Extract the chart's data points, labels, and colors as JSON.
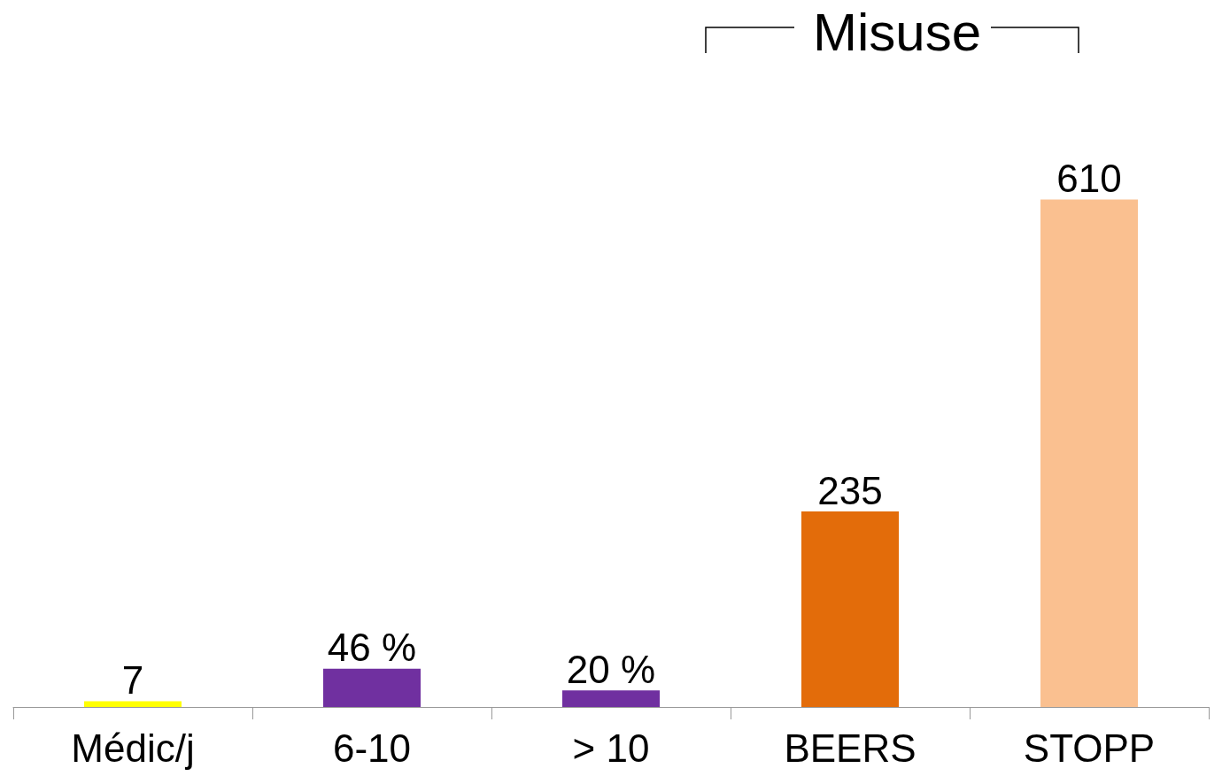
{
  "chart_data": {
    "type": "bar",
    "categories": [
      "Médic/j",
      "6-10",
      "> 10",
      "BEERS",
      "STOPP"
    ],
    "values": [
      7,
      46,
      20,
      235,
      610
    ],
    "colors": [
      "#ffff00",
      "#7030a0",
      "#7030a0",
      "#e36c0a",
      "#fac090"
    ],
    "value_labels": [
      "7",
      "46 %",
      "20 %",
      "235",
      "610"
    ],
    "annotations": [
      "Misuse"
    ],
    "tick_labels": "x"
  }
}
